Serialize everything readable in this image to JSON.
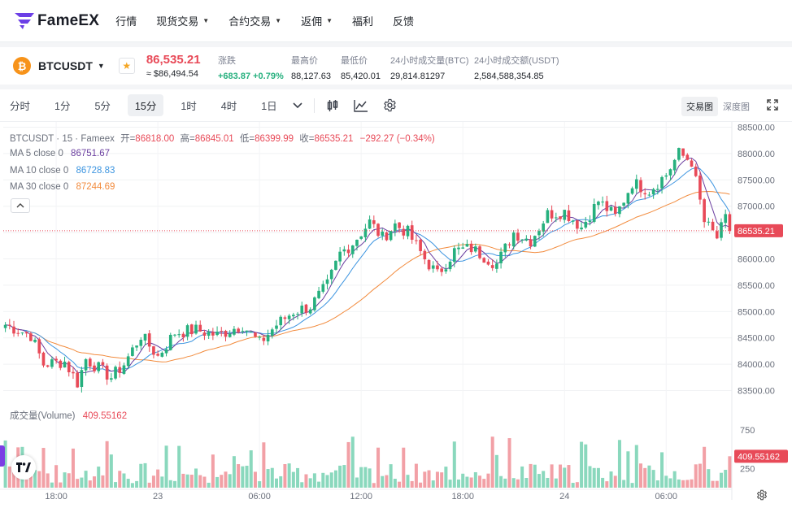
{
  "nav": {
    "brand": "FameEX",
    "items": [
      {
        "label": "行情",
        "caret": false
      },
      {
        "label": "现货交易",
        "caret": true
      },
      {
        "label": "合约交易",
        "caret": true
      },
      {
        "label": "返佣",
        "caret": true
      },
      {
        "label": "福利",
        "caret": false
      },
      {
        "label": "反馈",
        "caret": false
      }
    ]
  },
  "ticker": {
    "coin_glyph": "₿",
    "symbol": "BTCUSDT",
    "price": "86,535.21",
    "price_usd": "≈ $86,494.54",
    "stats": [
      {
        "label": "涨跌",
        "value": "+683.87 +0.79%",
        "positive": true
      },
      {
        "label": "最高价",
        "value": "88,127.63"
      },
      {
        "label": "最低价",
        "value": "85,420.01"
      },
      {
        "label": "24小时成交量(BTC)",
        "value": "29,814.81297"
      },
      {
        "label": "24小时成交额(USDT)",
        "value": "2,584,588,354.85"
      }
    ]
  },
  "toolbar": {
    "timeframes": [
      "分时",
      "1分",
      "5分",
      "15分",
      "1时",
      "4时",
      "1日"
    ],
    "active": "15分",
    "views": [
      "交易图",
      "深度图"
    ],
    "active_view": "交易图"
  },
  "legend": {
    "title": "BTCUSDT · 15 · Fameex",
    "open_label": "开=",
    "open": "86818.00",
    "high_label": "高=",
    "high": "86845.01",
    "low_label": "低=",
    "low": "86399.99",
    "close_label": "收=",
    "close": "86535.21",
    "change": "−292.27 (−0.34%)",
    "ma5_label": "MA 5 close 0",
    "ma5": "86751.67",
    "ma10_label": "MA 10 close 0",
    "ma10": "86728.83",
    "ma30_label": "MA 30 close 0",
    "ma30": "87244.69",
    "volume_label": "成交量(Volume)",
    "volume": "409.55162"
  },
  "colors": {
    "up": "#26b07e",
    "down": "#e84a58",
    "ma5": "#6b3fa0",
    "ma10": "#3d95e0",
    "ma30": "#f28b3d",
    "up_vol": "#8ad8bd",
    "down_vol": "#f2a0a6"
  },
  "chart_data": {
    "type": "candlestick",
    "price_axis": {
      "min": 83200,
      "max": 88600,
      "ticks": [
        "88500.00",
        "88000.00",
        "87500.00",
        "87000.00",
        "86500.00",
        "86000.00",
        "85500.00",
        "85000.00",
        "84500.00",
        "84000.00",
        "83500.00"
      ],
      "tick_values": [
        88500,
        88000,
        87500,
        87000,
        86500,
        86000,
        85500,
        85000,
        84500,
        84000,
        83500
      ],
      "last_price": 86535.21,
      "last_label": "86535.21"
    },
    "volume_axis": {
      "max": 900,
      "ticks": [
        "750",
        "250"
      ],
      "tick_values": [
        750,
        250
      ],
      "last_volume": 409.55162,
      "last_label": "409.55162"
    },
    "time_labels": [
      {
        "label": "18:00",
        "bar": 12
      },
      {
        "label": "23",
        "bar": 36
      },
      {
        "label": "06:00",
        "bar": 60
      },
      {
        "label": "12:00",
        "bar": 84
      },
      {
        "label": "18:00",
        "bar": 108
      },
      {
        "label": "24",
        "bar": 132
      },
      {
        "label": "06:00",
        "bar": 156
      }
    ],
    "bar_count": 172,
    "anchors": [
      [
        0,
        84750
      ],
      [
        6,
        84550
      ],
      [
        9,
        84000
      ],
      [
        14,
        84050
      ],
      [
        17,
        83650
      ],
      [
        19,
        84100
      ],
      [
        25,
        83750
      ],
      [
        28,
        84000
      ],
      [
        32,
        84550
      ],
      [
        36,
        84150
      ],
      [
        40,
        84600
      ],
      [
        45,
        84650
      ],
      [
        50,
        84550
      ],
      [
        56,
        84750
      ],
      [
        60,
        84400
      ],
      [
        64,
        84750
      ],
      [
        68,
        85000
      ],
      [
        72,
        85100
      ],
      [
        76,
        85500
      ],
      [
        79,
        86100
      ],
      [
        82,
        86300
      ],
      [
        86,
        86700
      ],
      [
        89,
        86400
      ],
      [
        92,
        86650
      ],
      [
        95,
        86500
      ],
      [
        99,
        86000
      ],
      [
        102,
        85700
      ],
      [
        106,
        86150
      ],
      [
        110,
        86200
      ],
      [
        113,
        86050
      ],
      [
        116,
        85900
      ],
      [
        120,
        86500
      ],
      [
        124,
        86350
      ],
      [
        128,
        86850
      ],
      [
        132,
        86900
      ],
      [
        136,
        86600
      ],
      [
        140,
        87100
      ],
      [
        144,
        86800
      ],
      [
        148,
        87450
      ],
      [
        152,
        87300
      ],
      [
        156,
        87600
      ],
      [
        159,
        88000
      ],
      [
        162,
        87850
      ],
      [
        165,
        86700
      ],
      [
        168,
        86400
      ],
      [
        170,
        86750
      ],
      [
        171,
        86535
      ]
    ],
    "series": [
      {
        "name": "MA 5 close 0",
        "value": 86751.67
      },
      {
        "name": "MA 10 close 0",
        "value": 86728.83
      },
      {
        "name": "MA 30 close 0",
        "value": 87244.69
      }
    ]
  }
}
